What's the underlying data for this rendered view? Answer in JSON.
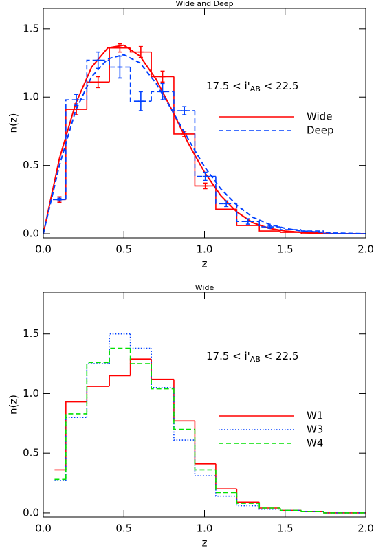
{
  "chart_data": [
    {
      "type": "histogram",
      "title": "Wide and Deep",
      "xlabel": "z",
      "ylabel": "n(z)",
      "annotation": [
        "17.5 < i'",
        "AB",
        " < 22.5"
      ],
      "xlim": [
        0,
        2
      ],
      "ylim": [
        -0.03,
        1.65
      ],
      "xticks": [
        {
          "value": 0,
          "label": "0.0"
        },
        0.5,
        {
          "value": 1,
          "label": "1.0"
        },
        1.5,
        {
          "value": 2,
          "label": "2.0"
        }
      ],
      "yticks": [
        {
          "value": 0,
          "label": "0.0"
        },
        0.5,
        {
          "value": 1,
          "label": "1.0"
        },
        1.5
      ],
      "bins": [
        0.06,
        0.14,
        0.27,
        0.41,
        0.54,
        0.67,
        0.81,
        0.94,
        1.07,
        1.2,
        1.34,
        1.47,
        1.6,
        1.74,
        1.87,
        2.0
      ],
      "x": [
        0,
        0.1,
        0.2,
        0.3,
        0.4,
        0.5,
        0.6,
        0.7,
        0.8,
        0.9,
        1.0,
        1.1,
        1.2,
        1.3,
        1.4,
        1.5,
        1.6,
        1.8,
        2.0
      ],
      "series": [
        {
          "name": "Wide",
          "color": "#ff0000",
          "dash": "solid",
          "values": [
            0.25,
            0.91,
            1.11,
            1.36,
            1.33,
            1.15,
            0.73,
            0.35,
            0.18,
            0.06,
            0.02,
            0.01,
            0.0,
            0.0,
            0.0
          ],
          "errors": [
            0.02,
            0.04,
            0.04,
            0.03,
            0.04,
            0.04,
            0.02,
            0.02,
            null,
            null,
            null,
            null,
            null,
            null,
            null
          ],
          "curve": [
            0,
            0.55,
            0.95,
            1.22,
            1.36,
            1.38,
            1.3,
            1.13,
            0.9,
            0.66,
            0.45,
            0.28,
            0.16,
            0.08,
            0.04,
            0.02,
            0.01,
            0,
            0
          ]
        },
        {
          "name": "Deep",
          "color": "#0040ff",
          "dash": "dashed",
          "values": [
            0.25,
            0.98,
            1.27,
            1.22,
            0.97,
            1.04,
            0.9,
            0.42,
            0.22,
            0.09,
            0.05,
            0.03,
            0.02,
            0.0,
            0.0
          ],
          "errors": [
            0.01,
            0.04,
            0.06,
            0.08,
            0.07,
            0.06,
            0.03,
            0.03,
            0.02,
            0.02,
            0.01,
            null,
            null,
            null,
            null
          ],
          "curve": [
            0,
            0.5,
            0.9,
            1.15,
            1.28,
            1.31,
            1.25,
            1.1,
            0.9,
            0.69,
            0.49,
            0.33,
            0.21,
            0.12,
            0.07,
            0.04,
            0.02,
            0.005,
            0
          ]
        }
      ]
    },
    {
      "type": "histogram",
      "title": "Wide",
      "xlabel": "z",
      "ylabel": "n(z)",
      "annotation": [
        "17.5 < i'",
        "AB",
        " < 22.5"
      ],
      "xlim": [
        0,
        2
      ],
      "ylim": [
        -0.035,
        1.85
      ],
      "xticks": [
        {
          "value": 0,
          "label": "0.0"
        },
        0.5,
        {
          "value": 1,
          "label": "1.0"
        },
        1.5,
        {
          "value": 2,
          "label": "2.0"
        }
      ],
      "yticks": [
        {
          "value": 0,
          "label": "0.0"
        },
        0.5,
        {
          "value": 1,
          "label": "1.0"
        },
        1.5
      ],
      "bins": [
        0.07,
        0.14,
        0.27,
        0.41,
        0.54,
        0.67,
        0.81,
        0.94,
        1.07,
        1.2,
        1.34,
        1.47,
        1.6,
        1.74,
        1.87,
        2.0
      ],
      "series": [
        {
          "name": "W1",
          "color": "#ff0000",
          "dash": "solid",
          "values": [
            0.36,
            0.93,
            1.06,
            1.15,
            1.29,
            1.12,
            0.77,
            0.41,
            0.2,
            0.09,
            0.04,
            0.02,
            0.01,
            0.0,
            0.0
          ]
        },
        {
          "name": "W3",
          "color": "#0040ff",
          "dash": "dotted",
          "values": [
            0.27,
            0.8,
            1.25,
            1.5,
            1.38,
            1.05,
            0.61,
            0.31,
            0.14,
            0.06,
            0.03,
            0.02,
            0.01,
            0.0,
            0.0
          ]
        },
        {
          "name": "W4",
          "color": "#00e000",
          "dash": "dashed",
          "values": [
            0.28,
            0.83,
            1.26,
            1.38,
            1.25,
            1.04,
            0.7,
            0.36,
            0.17,
            0.08,
            0.04,
            0.02,
            0.01,
            0.0,
            0.0
          ]
        }
      ]
    }
  ]
}
